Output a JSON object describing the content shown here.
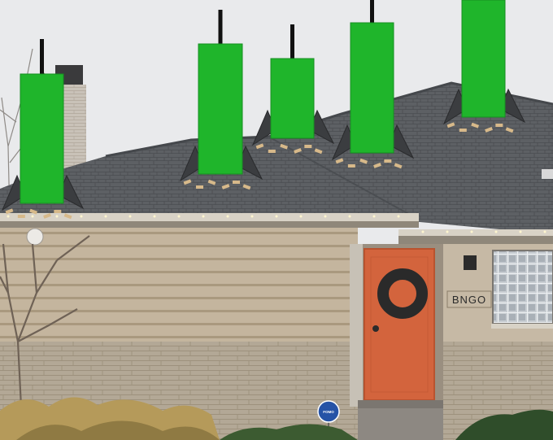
{
  "house_sign": "BNGO",
  "yard_sign": "FOMO",
  "colors": {
    "sky": "#e9eaec",
    "candle_green": "#1fb52b",
    "candle_wick": "#111111",
    "roof_shingle": "#5d6064",
    "siding": "#c4b59e",
    "brick": "#b3a896",
    "door": "#d3643d",
    "wreath": "#2a2a2a",
    "trim": "#d8d2c6"
  },
  "candles": [
    {
      "name": "candle-1",
      "body_top": 91,
      "body_bottom": 250,
      "wick_top": 48
    },
    {
      "name": "candle-2",
      "body_top": 54,
      "body_bottom": 214,
      "wick_top": 12
    },
    {
      "name": "candle-3",
      "body_top": 72,
      "body_bottom": 170,
      "wick_top": 30
    },
    {
      "name": "candle-4",
      "body_top": 28,
      "body_bottom": 188,
      "wick_top": 0
    },
    {
      "name": "candle-5",
      "body_top": 0,
      "body_bottom": 144,
      "wick_top": 0
    }
  ]
}
